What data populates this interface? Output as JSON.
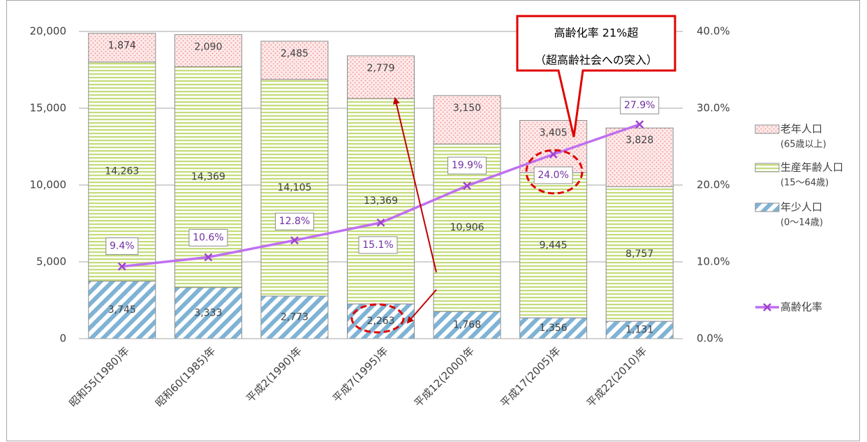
{
  "chart_data": {
    "type": "bar",
    "stacked": true,
    "categories": [
      "昭和55(1980)年",
      "昭和60(1985)年",
      "平成2(1990)年",
      "平成7(1995)年",
      "平成12(2000)年",
      "平成17(2005)年",
      "平成22(2010)年"
    ],
    "series": [
      {
        "name": "年少人口",
        "note": "(0〜14歳)",
        "color": "#7fb3d5",
        "values": [
          3745,
          3333,
          2773,
          2263,
          1768,
          1356,
          1131
        ],
        "value_labels": [
          "3,745",
          "3,333",
          "2,773",
          "2,263",
          "1,768",
          "1,356",
          "1,131"
        ]
      },
      {
        "name": "生産年齢人口",
        "note": "(15〜64歳)",
        "color": "#c4dc7a",
        "values": [
          14263,
          14369,
          14105,
          13369,
          10906,
          9445,
          8757
        ],
        "value_labels": [
          "14,263",
          "14,369",
          "14,105",
          "13,369",
          "10,906",
          "9,445",
          "8,757"
        ]
      },
      {
        "name": "老年人口",
        "note": "(65歳以上)",
        "color": "#f08c8c",
        "values": [
          1874,
          2090,
          2485,
          2779,
          3150,
          3405,
          3828
        ],
        "value_labels": [
          "1,874",
          "2,090",
          "2,485",
          "2,779",
          "3,150",
          "3,405",
          "3,828"
        ]
      },
      {
        "name": "高齢化率",
        "type": "line",
        "axis": "y2",
        "color": "#bf6ff0",
        "values": [
          9.4,
          10.6,
          12.8,
          15.1,
          19.9,
          24.0,
          27.9
        ],
        "value_labels": [
          "9.4%",
          "10.6%",
          "12.8%",
          "15.1%",
          "19.9%",
          "24.0%",
          "27.9%"
        ]
      }
    ],
    "ylim": [
      0,
      20000
    ],
    "yticks": [
      0,
      {
        "value": 5000,
        "label": "5,000"
      },
      {
        "value": 10000,
        "label": "10,000"
      },
      {
        "value": 15000,
        "label": "15,000"
      },
      {
        "value": 20000,
        "label": "20,000"
      }
    ],
    "y2lim": [
      0,
      40
    ],
    "y2ticks": [
      {
        "value": 0,
        "label": "0.0%"
      },
      {
        "value": 10,
        "label": "10.0%"
      },
      {
        "value": 20,
        "label": "20.0%"
      },
      {
        "value": 30,
        "label": "30.0%"
      },
      {
        "value": 40,
        "label": "40.0%"
      }
    ],
    "grid": true,
    "legend": "right",
    "annotation": [
      "高齢化率 21%超",
      "（超高齢社会への突入）"
    ]
  }
}
